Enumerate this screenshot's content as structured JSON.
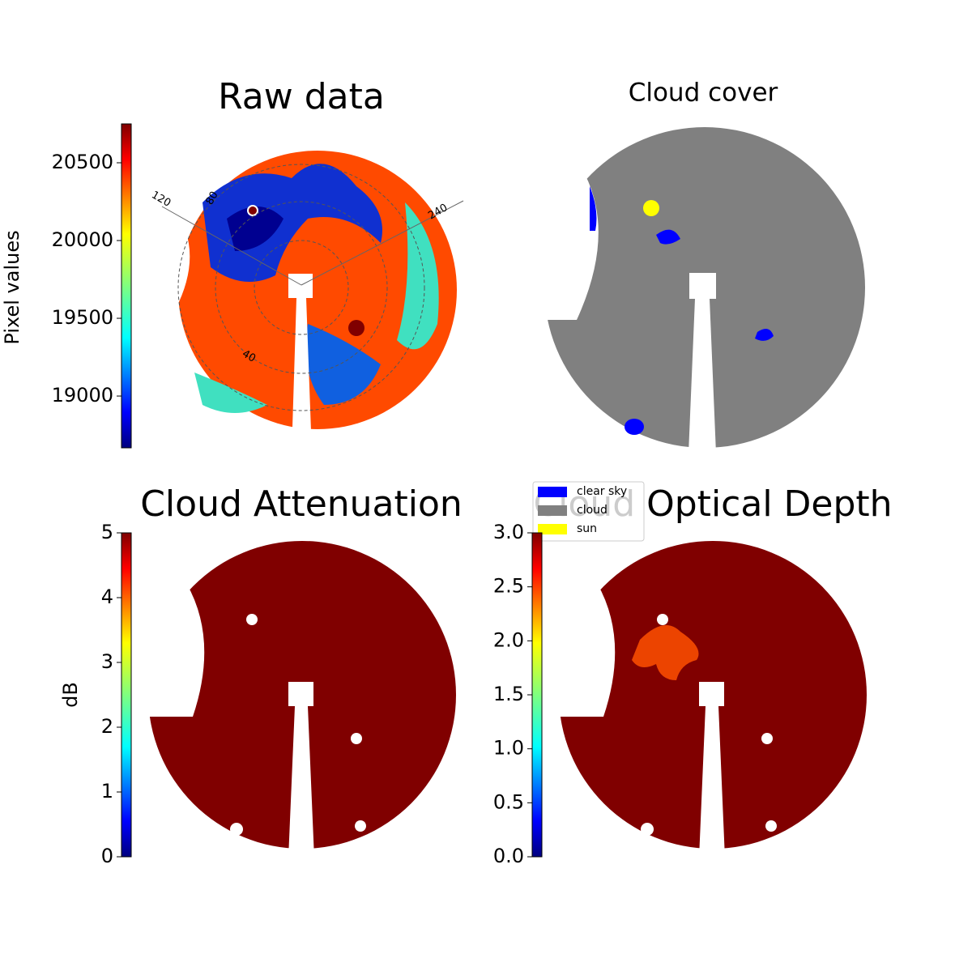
{
  "chart_data": [
    {
      "type": "image",
      "title": "Raw data",
      "colorbar_label": "Pixel values",
      "ylim": [
        18667,
        20750
      ],
      "yticks": [
        19000,
        19500,
        20000,
        20500
      ],
      "grid_labels": [
        "120",
        "80",
        "240",
        "40"
      ]
    },
    {
      "type": "image",
      "title": "Cloud cover",
      "legend": [
        {
          "name": "clear sky",
          "color": "#0000ff"
        },
        {
          "name": "cloud",
          "color": "#808080"
        },
        {
          "name": "sun",
          "color": "#ffff00"
        }
      ]
    },
    {
      "type": "image",
      "title": "Cloud Attenuation",
      "colorbar_label": "dB",
      "ylim": [
        0,
        5
      ],
      "yticks": [
        0,
        1,
        2,
        3,
        4,
        5
      ]
    },
    {
      "type": "image",
      "title": "Cloud Optical Depth",
      "ylim": [
        0,
        3
      ],
      "yticks": [
        {
          "value": 0,
          "label": "0.0"
        },
        0.5,
        {
          "value": 1,
          "label": "1.0"
        },
        1.5,
        {
          "value": 2,
          "label": "2.0"
        },
        2.5,
        {
          "value": 3,
          "label": "3.0"
        }
      ]
    }
  ]
}
